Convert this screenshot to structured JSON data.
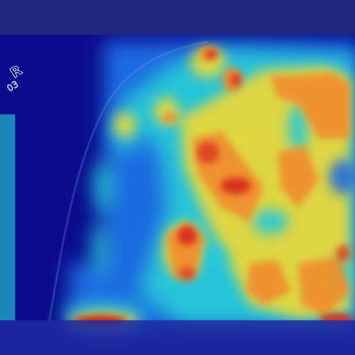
{
  "image": {
    "kind": "heatmap-overlay-photo",
    "colormap": "jet"
  },
  "marker": {
    "letter": "R",
    "number": "03"
  },
  "colors": {
    "cold": "#0a0a8a",
    "cool": "#1e6be0",
    "mid": "#27c9d8",
    "warm": "#e6d83a",
    "hot": "#f0902e",
    "peak": "#d8321e"
  }
}
